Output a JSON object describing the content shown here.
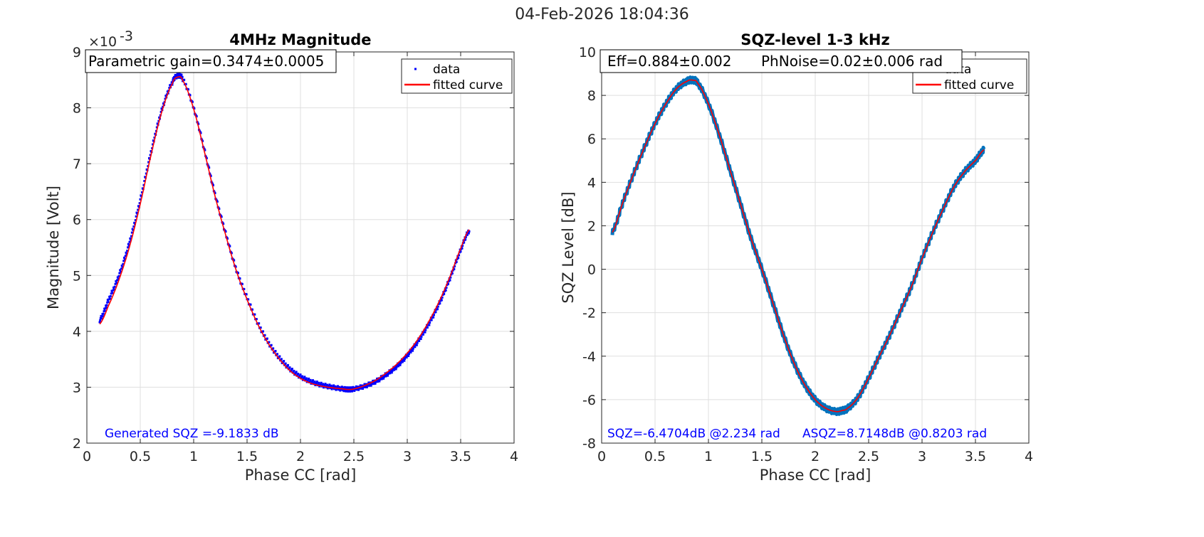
{
  "figure": {
    "timestamp": "04-Feb-2026 18:04:36"
  },
  "colors": {
    "data_left": "#0000ff",
    "data_right": "#0072bd",
    "fit": "#ff0000",
    "note": "#0000ff",
    "grid": "#dfdfdf",
    "axis": "#262626"
  },
  "chart_data": [
    {
      "type": "line",
      "title": "4MHz Magnitude",
      "xlabel": "Phase CC [rad]",
      "ylabel": "Magnitude  [Volt]",
      "xlim": [
        0,
        4
      ],
      "ylim": [
        2,
        9
      ],
      "y_exponent_label": "×10",
      "y_exponent_power": "-3",
      "xticks": [
        "0",
        "0.5",
        "1",
        "1.5",
        "2",
        "2.5",
        "3",
        "3.5",
        "4"
      ],
      "yticks": [
        "2",
        "3",
        "4",
        "5",
        "6",
        "7",
        "8",
        "9"
      ],
      "grid": true,
      "legend_position": "top-right",
      "info_box": "Parametric gain=0.3474±0.0005",
      "annotation": "Generated SQZ =-9.1833 dB",
      "series": [
        {
          "name": "data",
          "style": "dots",
          "color": "#0000ff",
          "x": [
            0.12,
            0.2,
            0.3,
            0.4,
            0.5,
            0.6,
            0.7,
            0.8,
            0.85,
            0.9,
            1.0,
            1.1,
            1.2,
            1.3,
            1.4,
            1.5,
            1.6,
            1.7,
            1.8,
            1.9,
            2.0,
            2.1,
            2.2,
            2.3,
            2.4,
            2.45,
            2.5,
            2.6,
            2.7,
            2.8,
            2.9,
            3.0,
            3.1,
            3.2,
            3.3,
            3.4,
            3.5,
            3.58
          ],
          "y": [
            4.2,
            4.55,
            5.0,
            5.6,
            6.35,
            7.2,
            7.95,
            8.45,
            8.57,
            8.5,
            8.0,
            7.25,
            6.45,
            5.75,
            5.1,
            4.6,
            4.15,
            3.8,
            3.53,
            3.33,
            3.19,
            3.1,
            3.04,
            3.0,
            2.97,
            2.96,
            2.97,
            3.02,
            3.1,
            3.22,
            3.37,
            3.57,
            3.82,
            4.13,
            4.5,
            4.95,
            5.45,
            5.8
          ]
        },
        {
          "name": "fitted curve",
          "style": "line",
          "color": "#ff0000",
          "x": [
            0.12,
            0.2,
            0.3,
            0.4,
            0.5,
            0.6,
            0.7,
            0.8,
            0.85,
            0.9,
            1.0,
            1.1,
            1.2,
            1.3,
            1.4,
            1.5,
            1.6,
            1.7,
            1.8,
            1.9,
            2.0,
            2.1,
            2.2,
            2.3,
            2.4,
            2.45,
            2.5,
            2.6,
            2.7,
            2.8,
            2.9,
            3.0,
            3.1,
            3.2,
            3.3,
            3.4,
            3.5,
            3.58
          ],
          "y": [
            4.13,
            4.45,
            4.92,
            5.52,
            6.28,
            7.15,
            7.92,
            8.43,
            8.55,
            8.48,
            7.98,
            7.22,
            6.42,
            5.72,
            5.08,
            4.57,
            4.13,
            3.78,
            3.51,
            3.3,
            3.16,
            3.07,
            3.02,
            2.99,
            2.97,
            2.96,
            2.97,
            3.03,
            3.12,
            3.25,
            3.41,
            3.61,
            3.86,
            4.17,
            4.54,
            4.98,
            5.48,
            5.82
          ]
        }
      ]
    },
    {
      "type": "line",
      "title": "SQZ-level 1-3 kHz",
      "xlabel": "Phase CC [rad]",
      "ylabel": "SQZ Level [dB]",
      "xlim": [
        0,
        4
      ],
      "ylim": [
        -8,
        10
      ],
      "xticks": [
        "0",
        "0.5",
        "1",
        "1.5",
        "2",
        "2.5",
        "3",
        "3.5",
        "4"
      ],
      "yticks": [
        "-8",
        "-6",
        "-4",
        "-2",
        "0",
        "2",
        "4",
        "6",
        "8",
        "10"
      ],
      "grid": true,
      "legend_position": "top-right",
      "info_box_1": "Eff=0.884±0.002",
      "info_box_2": "PhNoise=0.02±0.006  rad",
      "annotation_1": "SQZ=-6.4704dB  @2.234 rad",
      "annotation_2": "ASQZ=8.7148dB  @0.8203 rad",
      "series": [
        {
          "name": "data",
          "style": "thick-noisy-line",
          "color": "#0072bd",
          "x": [
            0.1,
            0.2,
            0.3,
            0.4,
            0.5,
            0.6,
            0.7,
            0.8,
            0.85,
            0.9,
            1.0,
            1.1,
            1.2,
            1.3,
            1.4,
            1.5,
            1.6,
            1.7,
            1.8,
            1.9,
            2.0,
            2.1,
            2.2,
            2.25,
            2.3,
            2.4,
            2.5,
            2.6,
            2.7,
            2.8,
            2.9,
            3.0,
            3.1,
            3.2,
            3.3,
            3.4,
            3.5,
            3.58
          ],
          "y": [
            1.7,
            3.1,
            4.4,
            5.6,
            6.7,
            7.6,
            8.3,
            8.65,
            8.7,
            8.55,
            7.6,
            6.2,
            4.6,
            3.0,
            1.4,
            0.0,
            -1.5,
            -3.0,
            -4.3,
            -5.3,
            -6.0,
            -6.4,
            -6.55,
            -6.5,
            -6.4,
            -5.9,
            -5.0,
            -4.0,
            -3.0,
            -1.9,
            -0.8,
            0.5,
            1.7,
            2.8,
            3.8,
            4.5,
            5.0,
            5.5
          ]
        },
        {
          "name": "fitted curve",
          "style": "line",
          "color": "#ff0000",
          "x": [
            0.1,
            0.2,
            0.3,
            0.4,
            0.5,
            0.6,
            0.7,
            0.8,
            0.85,
            0.9,
            1.0,
            1.1,
            1.2,
            1.3,
            1.4,
            1.5,
            1.6,
            1.7,
            1.8,
            1.9,
            2.0,
            2.1,
            2.2,
            2.25,
            2.3,
            2.4,
            2.5,
            2.6,
            2.7,
            2.8,
            2.9,
            3.0,
            3.1,
            3.2,
            3.3,
            3.4,
            3.5,
            3.58
          ],
          "y": [
            1.7,
            3.1,
            4.4,
            5.6,
            6.7,
            7.6,
            8.3,
            8.65,
            8.7,
            8.55,
            7.6,
            6.2,
            4.6,
            3.0,
            1.4,
            0.0,
            -1.5,
            -3.0,
            -4.3,
            -5.3,
            -6.0,
            -6.4,
            -6.55,
            -6.5,
            -6.4,
            -5.9,
            -5.0,
            -4.0,
            -3.0,
            -1.9,
            -0.8,
            0.5,
            1.7,
            2.8,
            3.8,
            4.5,
            5.0,
            5.5
          ]
        }
      ]
    }
  ]
}
